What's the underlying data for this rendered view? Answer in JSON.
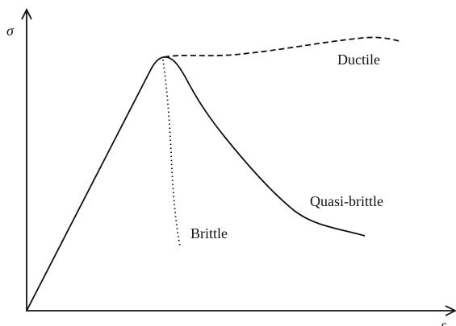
{
  "axes": {
    "y_label": "σ",
    "x_label": "ε"
  },
  "curves": [
    {
      "label": "Ductile"
    },
    {
      "label": "Quasi-brittle"
    },
    {
      "label": "Brittle"
    }
  ]
}
